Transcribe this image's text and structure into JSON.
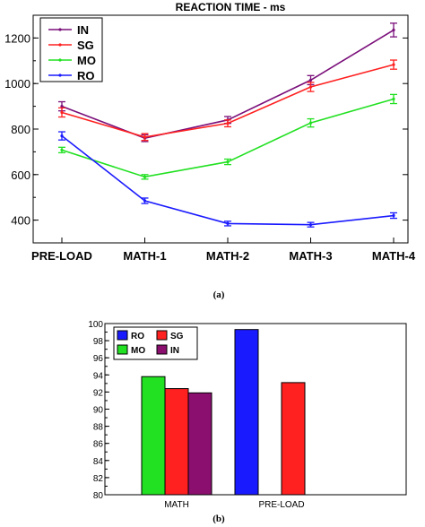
{
  "chart_data": [
    {
      "type": "line",
      "title": "REACTION TIME - ms",
      "xlabel": "",
      "ylabel": "",
      "categories": [
        "PRE-LOAD",
        "MATH-1",
        "MATH-2",
        "MATH-3",
        "MATH-4"
      ],
      "ylim": [
        300,
        1300
      ],
      "yticks": [
        400,
        600,
        800,
        1000,
        1200
      ],
      "legend": "top-left",
      "grid": false,
      "series": [
        {
          "name": "IN",
          "color": "#7a0f7a",
          "values": [
            900,
            760,
            840,
            1015,
            1235
          ],
          "errors": [
            20,
            15,
            15,
            20,
            30
          ]
        },
        {
          "name": "SG",
          "color": "#ff2020",
          "values": [
            873,
            765,
            825,
            985,
            1083
          ],
          "errors": [
            20,
            15,
            15,
            20,
            20
          ]
        },
        {
          "name": "MO",
          "color": "#22e022",
          "values": [
            708,
            590,
            656,
            827,
            932
          ],
          "errors": [
            12,
            10,
            12,
            18,
            20
          ]
        },
        {
          "name": "RO",
          "color": "#1a1aff",
          "values": [
            770,
            485,
            385,
            380,
            420
          ],
          "errors": [
            18,
            12,
            10,
            10,
            12
          ]
        }
      ],
      "caption": "(a)"
    },
    {
      "type": "bar",
      "title": "",
      "xlabel": "",
      "ylabel": "",
      "categories": [
        "MATH",
        "PRE-LOAD"
      ],
      "ylim": [
        80,
        100
      ],
      "yticks": [
        80,
        82,
        84,
        86,
        88,
        90,
        92,
        94,
        96,
        98,
        100
      ],
      "legend": "top-left",
      "grid": false,
      "series": [
        {
          "name": "RO",
          "color": "#1a1aff",
          "values": [
            null,
            99.3
          ]
        },
        {
          "name": "SG",
          "color": "#ff2020",
          "values": [
            null,
            93.1
          ]
        },
        {
          "name": "MO",
          "color": "#22e022",
          "values": [
            93.8,
            null
          ]
        },
        {
          "name": "IN",
          "color": "#8a0f6e",
          "values": [
            91.9,
            null
          ]
        },
        {
          "name": "",
          "color": "#ff2020",
          "values": [
            92.4,
            null
          ]
        }
      ],
      "caption": "(b)"
    }
  ]
}
